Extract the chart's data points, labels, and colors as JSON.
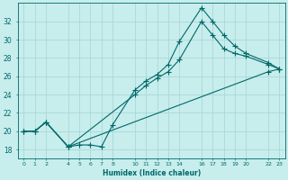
{
  "background_color": "#c8eded",
  "grid_color": "#a8d8d8",
  "line_color": "#006868",
  "xlabel": "Humidex (Indice chaleur)",
  "ylim": [
    17,
    34
  ],
  "xlim": [
    -0.5,
    23.5
  ],
  "yticks": [
    18,
    20,
    22,
    24,
    26,
    28,
    30,
    32
  ],
  "xtick_positions": [
    0,
    1,
    2,
    4,
    5,
    6,
    7,
    8,
    10,
    11,
    12,
    13,
    14,
    16,
    17,
    18,
    19,
    20,
    22,
    23
  ],
  "xtick_labels": [
    "0",
    "1",
    "2",
    "4",
    "5",
    "6",
    "7",
    "8",
    "10",
    "11",
    "12",
    "13",
    "14",
    "16",
    "17",
    "18",
    "19",
    "20",
    "22",
    "23"
  ],
  "series": [
    {
      "x": [
        0,
        1,
        2,
        4,
        5,
        6,
        7,
        8,
        10,
        11,
        12,
        13,
        14,
        16,
        17,
        18,
        19,
        20,
        22,
        23
      ],
      "y": [
        20,
        20,
        21,
        18.3,
        18.5,
        18.5,
        18.3,
        20.7,
        24.5,
        25.5,
        26.2,
        27.3,
        29.8,
        33.5,
        32.0,
        30.5,
        29.3,
        28.5,
        27.5,
        26.8
      ]
    },
    {
      "x": [
        0,
        1,
        2,
        4,
        10,
        11,
        12,
        13,
        14,
        16,
        17,
        18,
        19,
        20,
        22,
        23
      ],
      "y": [
        20,
        20,
        21,
        18.3,
        24.0,
        25.0,
        25.8,
        26.5,
        27.8,
        32.0,
        30.5,
        29.0,
        28.5,
        28.2,
        27.3,
        26.8
      ]
    },
    {
      "x": [
        0,
        1,
        2,
        4,
        22,
        23
      ],
      "y": [
        20,
        20,
        21,
        18.3,
        26.5,
        26.8
      ]
    }
  ]
}
